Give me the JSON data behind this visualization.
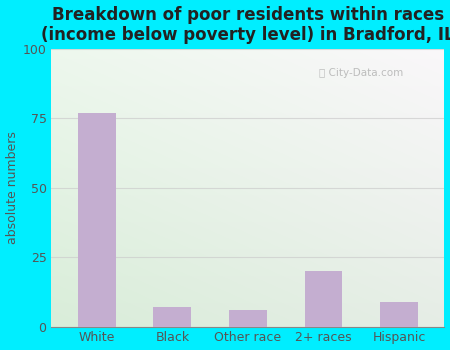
{
  "title": "Breakdown of poor residents within races\n(income below poverty level) in Bradford, IL",
  "categories": [
    "White",
    "Black",
    "Other race",
    "2+ races",
    "Hispanic"
  ],
  "values": [
    77,
    7,
    6,
    20,
    9
  ],
  "bar_color": "#c4aed0",
  "ylabel": "absolute numbers",
  "ylim": [
    0,
    100
  ],
  "yticks": [
    0,
    25,
    50,
    75,
    100
  ],
  "background_outer": "#00eeff",
  "grid_color": "#cccccc",
  "title_fontsize": 12,
  "axis_fontsize": 9,
  "tick_fontsize": 9,
  "watermark": "City-Data.com"
}
